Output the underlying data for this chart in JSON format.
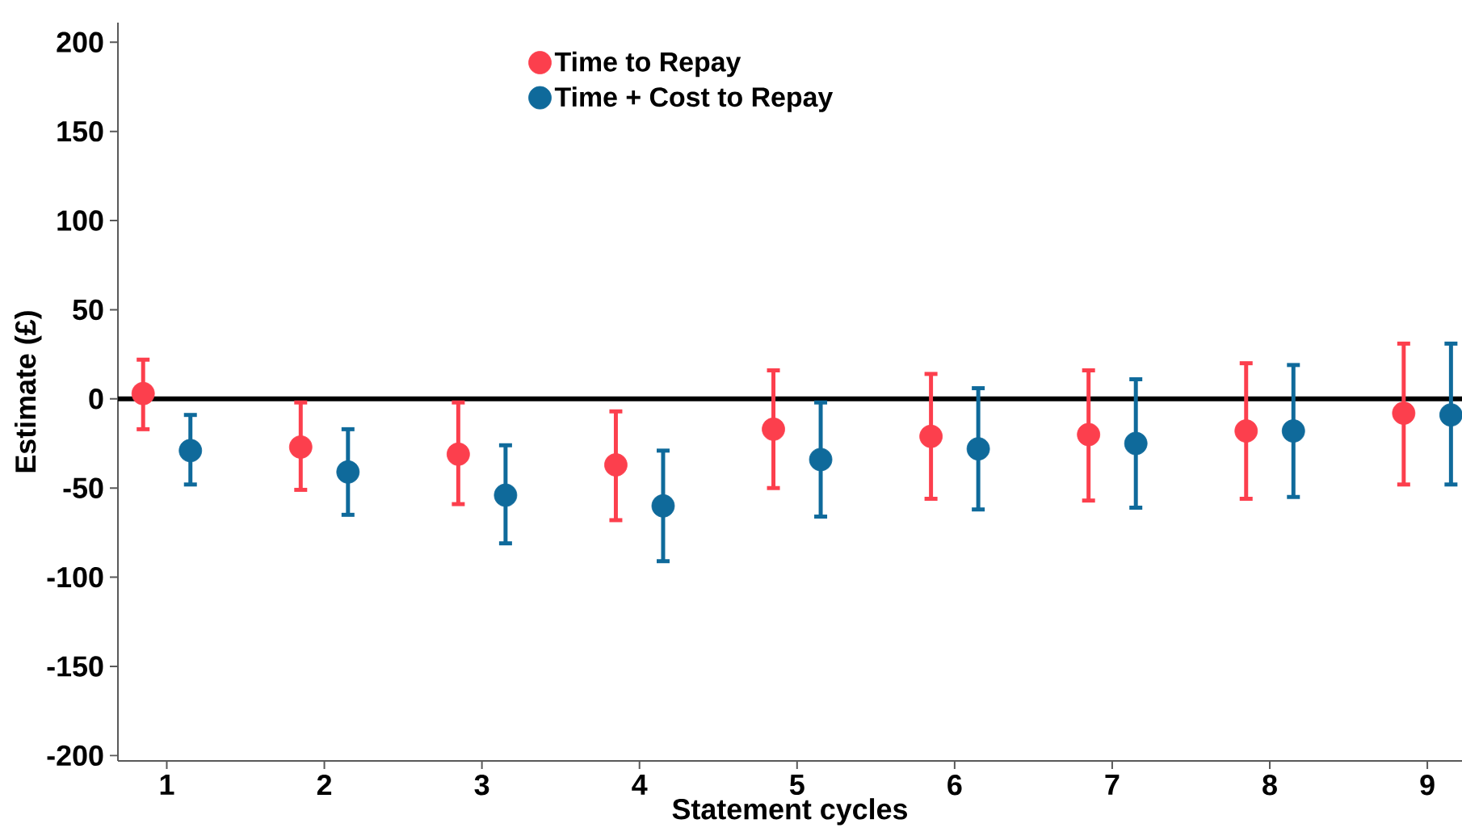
{
  "chart_data": {
    "type": "scatter",
    "xlabel": "Statement cycles",
    "ylabel": "Estimate (£)",
    "xlim": [
      0.69,
      9.22
    ],
    "xticks": [
      1,
      2,
      3,
      4,
      5,
      6,
      7,
      8,
      9
    ],
    "ylim": [
      -203,
      211
    ],
    "yticks": [
      -200,
      -150,
      -100,
      -50,
      0,
      50,
      100,
      150,
      200
    ],
    "legend": "top",
    "ref_lines": [
      {
        "axis": "y",
        "value": 0,
        "color": "#000000"
      }
    ],
    "series": [
      {
        "name": "Time to Repay",
        "color": "#fc3f4d",
        "x": [
          0.85,
          1.85,
          2.85,
          3.85,
          4.85,
          5.85,
          6.85,
          7.85,
          8.85
        ],
        "values": [
          3,
          -27,
          -31,
          -37,
          -17,
          -21,
          -20,
          -18,
          -8
        ],
        "errors": [
          [
            -17,
            22
          ],
          [
            -51,
            -2
          ],
          [
            -59,
            -2
          ],
          [
            -68,
            -7
          ],
          [
            -50,
            16
          ],
          [
            -56,
            14
          ],
          [
            -57,
            16
          ],
          [
            -56,
            20
          ],
          [
            -48,
            31
          ]
        ]
      },
      {
        "name": "Time + Cost to Repay",
        "color": "#0f6a9b",
        "x": [
          1.15,
          2.15,
          3.15,
          4.15,
          5.15,
          6.15,
          7.15,
          8.15,
          9.15
        ],
        "values": [
          -29,
          -41,
          -54,
          -60,
          -34,
          -28,
          -25,
          -18,
          -9
        ],
        "errors": [
          [
            -48,
            -9
          ],
          [
            -65,
            -17
          ],
          [
            -81,
            -26
          ],
          [
            -91,
            -29
          ],
          [
            -66,
            -2
          ],
          [
            -62,
            6
          ],
          [
            -61,
            11
          ],
          [
            -55,
            19
          ],
          [
            -48,
            31
          ]
        ]
      }
    ]
  }
}
